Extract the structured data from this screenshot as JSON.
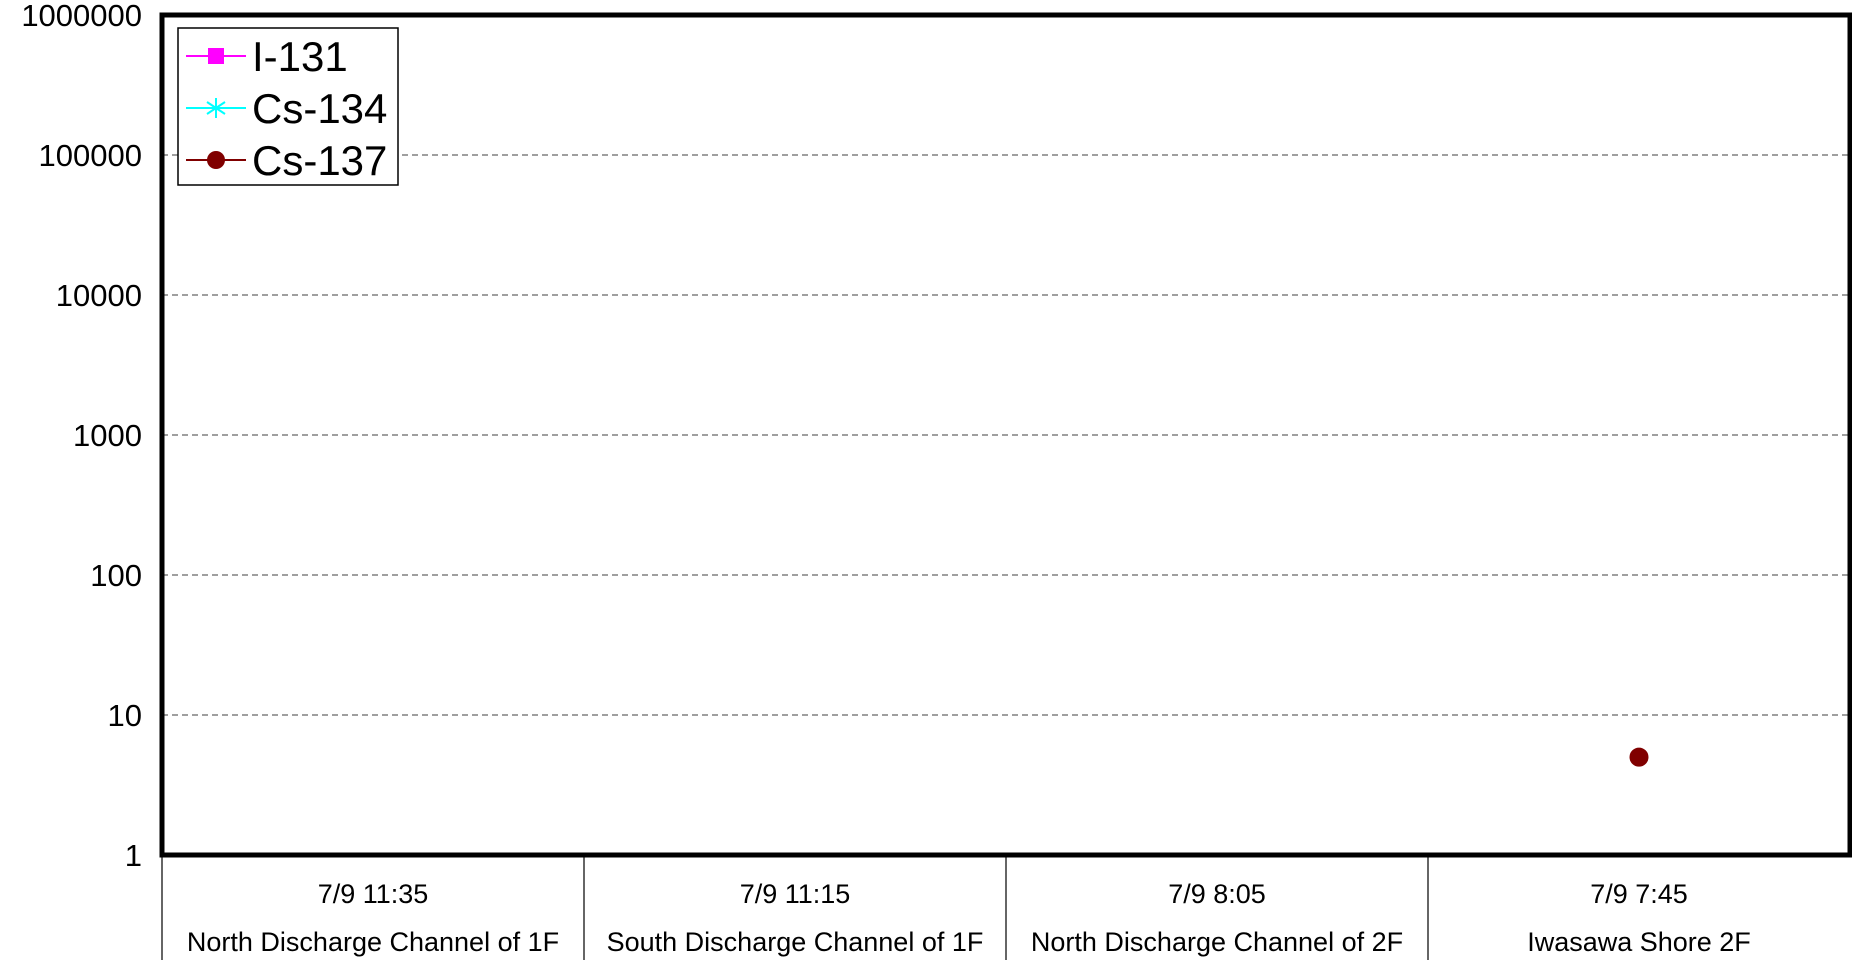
{
  "chart_data": {
    "type": "line",
    "y_scale": "log",
    "ylim": [
      1,
      1000000
    ],
    "y_ticks": [
      {
        "value": 1,
        "label": "1"
      },
      {
        "value": 10,
        "label": "10"
      },
      {
        "value": 100,
        "label": "100"
      },
      {
        "value": 1000,
        "label": "1000"
      },
      {
        "value": 10000,
        "label": "10000"
      },
      {
        "value": 100000,
        "label": "100000"
      },
      {
        "value": 1000000,
        "label": "1000000"
      }
    ],
    "grid": "horizontal dashed",
    "legend_position": "top-left",
    "categories": [
      {
        "time": "7/9 11:35",
        "location": "North Discharge Channel of 1F"
      },
      {
        "time": "7/9 11:15",
        "location": "South Discharge Channel of 1F"
      },
      {
        "time": "7/9 8:05",
        "location": "North Discharge Channel of 2F"
      },
      {
        "time": "7/9 7:45",
        "location": "Iwasawa Shore 2F"
      }
    ],
    "series": [
      {
        "name": "I-131",
        "color": "#ff00ff",
        "marker": "square",
        "values": [
          null,
          null,
          null,
          null
        ]
      },
      {
        "name": "Cs-134",
        "color": "#00ffff",
        "marker": "asterisk",
        "values": [
          null,
          null,
          null,
          null
        ]
      },
      {
        "name": "Cs-137",
        "color": "#800000",
        "marker": "circle",
        "values": [
          null,
          null,
          null,
          5
        ]
      }
    ]
  }
}
